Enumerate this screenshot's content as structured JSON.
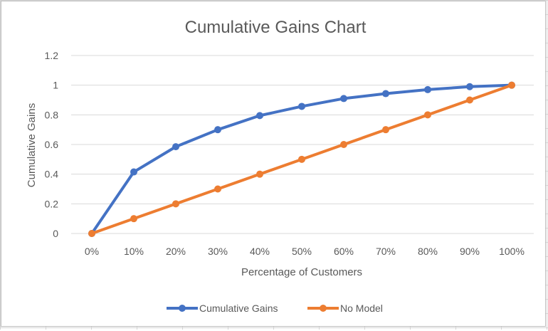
{
  "chart_data": {
    "type": "line",
    "title": "Cumulative Gains Chart",
    "xlabel": "Percentage of Customers",
    "ylabel": "Cumulative Gains",
    "categories": [
      "0%",
      "10%",
      "20%",
      "30%",
      "40%",
      "50%",
      "60%",
      "70%",
      "80%",
      "90%",
      "100%"
    ],
    "ylim": [
      0,
      1.2
    ],
    "yticks": [
      "0",
      "0.2",
      "0.4",
      "0.6",
      "0.8",
      "1",
      "1.2"
    ],
    "grid": true,
    "legend": "bottom",
    "series": [
      {
        "name": "Cumulative Gains",
        "color": "#4472c4",
        "values": [
          0,
          0.415,
          0.585,
          0.7,
          0.795,
          0.857,
          0.91,
          0.943,
          0.97,
          0.99,
          1.0
        ]
      },
      {
        "name": "No Model",
        "color": "#ed7d31",
        "values": [
          0,
          0.1,
          0.2,
          0.3,
          0.4,
          0.5,
          0.6,
          0.7,
          0.8,
          0.9,
          1.0
        ]
      }
    ]
  }
}
